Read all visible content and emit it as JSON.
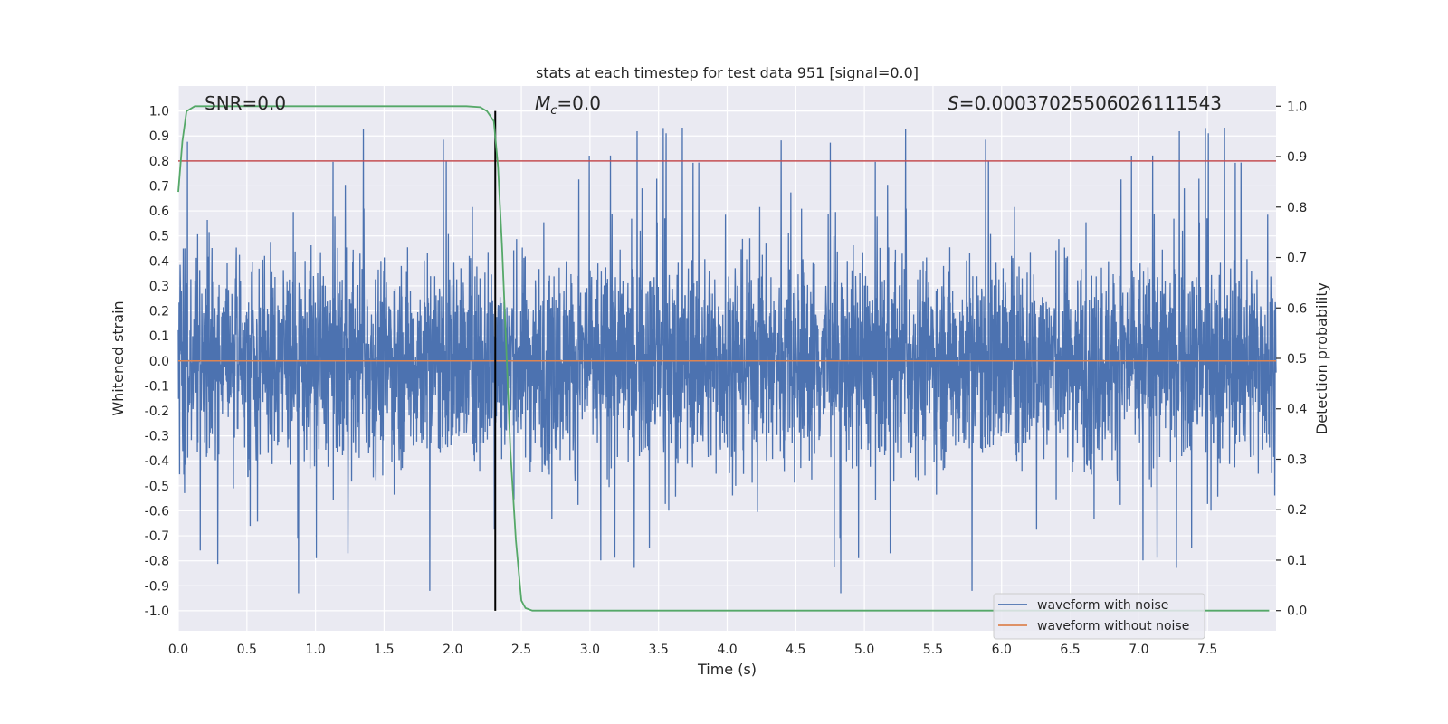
{
  "chart_data": {
    "type": "line",
    "title": "stats at each timestep for test data 951 [signal=0.0]",
    "xlabel": "Time (s)",
    "ylabel": "Whitened strain",
    "ylabel_right": "Detection probability",
    "xlim": [
      0.0,
      8.0
    ],
    "ylim": [
      -1.08,
      1.1
    ],
    "ylim_right": [
      -0.04,
      1.04
    ],
    "x_ticks": [
      0.0,
      0.5,
      1.0,
      1.5,
      2.0,
      2.5,
      3.0,
      3.5,
      4.0,
      4.5,
      5.0,
      5.5,
      6.0,
      6.5,
      7.0,
      7.5
    ],
    "x_tick_labels": [
      "0.0",
      "0.5",
      "1.0",
      "1.5",
      "2.0",
      "2.5",
      "3.0",
      "3.5",
      "4.0",
      "4.5",
      "5.0",
      "5.5",
      "6.0",
      "6.5",
      "7.0",
      "7.5"
    ],
    "y_ticks": [
      1.0,
      0.9,
      0.8,
      0.7,
      0.6,
      0.5,
      0.4,
      0.3,
      0.2,
      0.1,
      0.0,
      -0.1,
      -0.2,
      -0.3,
      -0.4,
      -0.5,
      -0.6,
      -0.7,
      -0.8,
      -0.9,
      -1.0
    ],
    "y_tick_labels": [
      "1.0",
      "0.9",
      "0.8",
      "0.7",
      "0.6",
      "0.5",
      "0.4",
      "0.3",
      "0.2",
      "0.1",
      "0.0",
      "-0.1",
      "-0.2",
      "-0.3",
      "-0.4",
      "-0.5",
      "-0.6",
      "-0.7",
      "-0.8",
      "-0.9",
      "-1.0"
    ],
    "y2_ticks": [
      1.0,
      0.9,
      0.8,
      0.7,
      0.6,
      0.5,
      0.4,
      0.3,
      0.2,
      0.1,
      0.0
    ],
    "y2_tick_labels": [
      "1.0",
      "0.9",
      "0.8",
      "0.7",
      "0.6",
      "0.5",
      "0.4",
      "0.3",
      "0.2",
      "0.1",
      "0.0"
    ],
    "annotations": {
      "snr": "SNR=0.0",
      "mc_symbol": "M",
      "mc_sub": "c",
      "mc_value": "=0.0",
      "s_symbol": "S",
      "s_value": "=0.00037025506026111543"
    },
    "threshold": {
      "value": 0.8,
      "color": "#c44e52"
    },
    "marker_line": {
      "x": 2.31,
      "color": "#000000"
    },
    "series": [
      {
        "name": "waveform with noise",
        "color": "#4c72b0",
        "description": "dense whitened noise, approx +/-0.4 envelope with spikes up to ~1.0"
      },
      {
        "name": "waveform without noise",
        "color": "#dd8452",
        "values_constant": 0.0
      },
      {
        "name": "detection probability",
        "axis": "right",
        "color": "#55a868",
        "x": [
          0.0,
          0.03,
          0.06,
          0.12,
          0.2,
          0.5,
          1.0,
          1.5,
          2.0,
          2.1,
          2.2,
          2.25,
          2.3,
          2.33,
          2.36,
          2.39,
          2.42,
          2.46,
          2.5,
          2.53,
          2.58,
          2.7,
          3.0,
          4.0,
          5.0,
          6.0,
          7.0,
          7.95
        ],
        "values": [
          0.83,
          0.93,
          0.99,
          1.0,
          1.0,
          1.0,
          1.0,
          1.0,
          1.0,
          1.0,
          0.998,
          0.99,
          0.97,
          0.88,
          0.72,
          0.52,
          0.32,
          0.14,
          0.02,
          0.005,
          0.0,
          0.0,
          0.0,
          0.0,
          0.0,
          0.0,
          0.0,
          0.0
        ]
      }
    ],
    "legend": {
      "position": "lower-right",
      "items": [
        {
          "label": "waveform with noise",
          "color": "#4c72b0"
        },
        {
          "label": "waveform without noise",
          "color": "#dd8452"
        }
      ]
    },
    "background": "#eaeaf2",
    "grid": true
  }
}
